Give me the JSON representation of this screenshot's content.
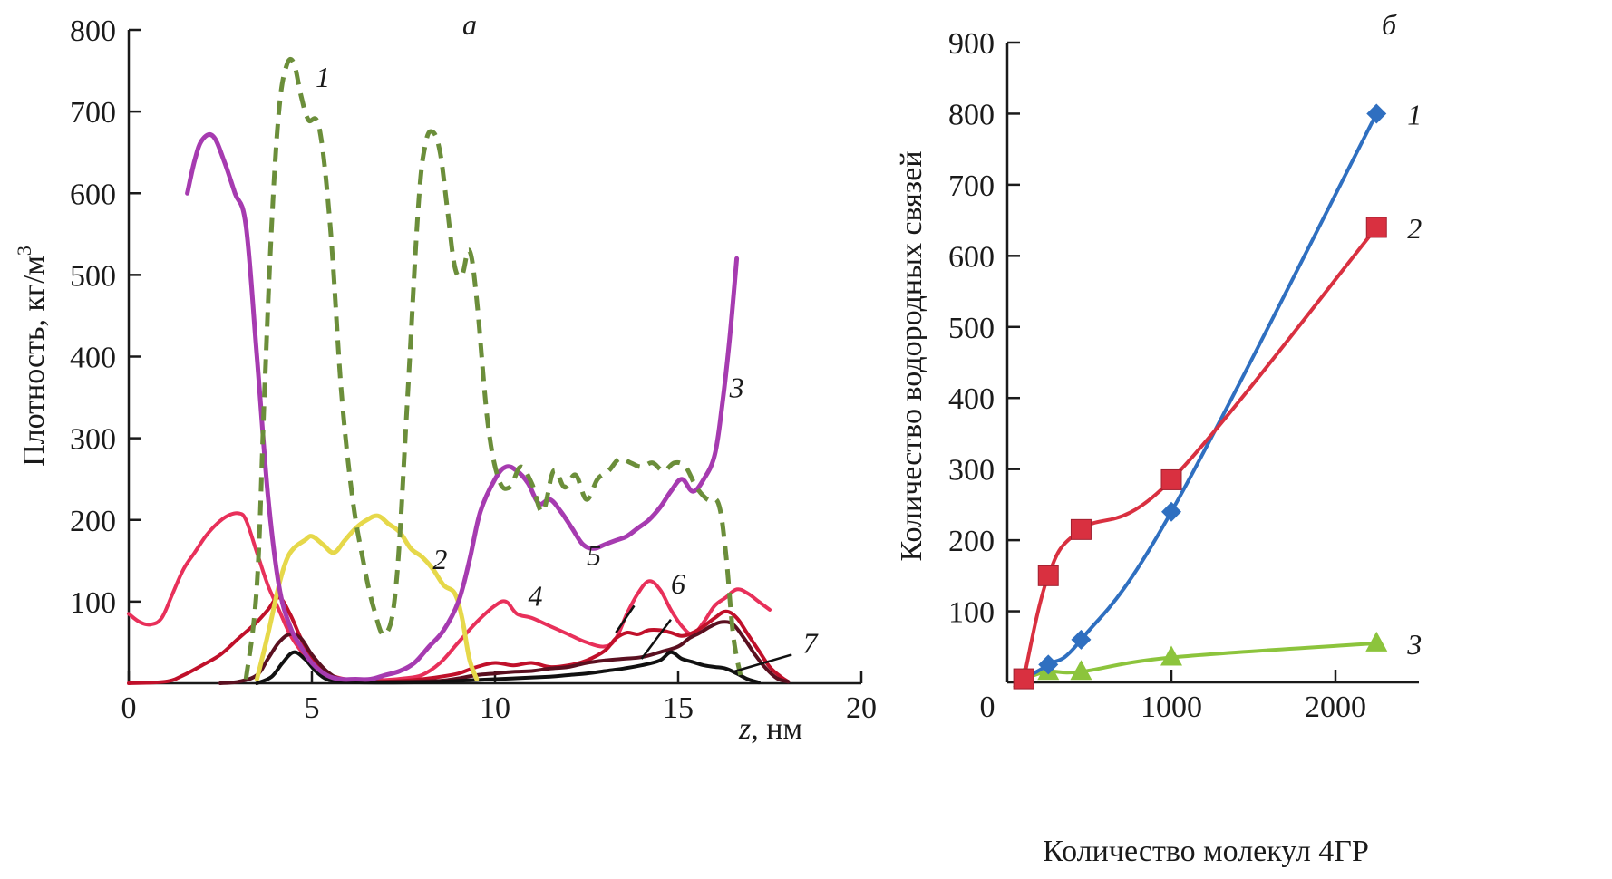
{
  "chart_data": [
    {
      "type": "line",
      "panel_label": "а",
      "title": "",
      "xlabel_italic": "z",
      "xlabel_rest": ", нм",
      "ylabel": "Плотность, кг/м",
      "ylabel_sup": "3",
      "xlim": [
        0,
        20
      ],
      "ylim": [
        0,
        800
      ],
      "xticks": [
        0,
        5,
        10,
        15,
        20
      ],
      "yticks": [
        100,
        200,
        300,
        400,
        500,
        600,
        700,
        800
      ],
      "grid": false,
      "series": [
        {
          "name": "1",
          "color": "#6b8e3a",
          "dashed": true,
          "label_pos": [
            5.3,
            730
          ],
          "x": [
            3.2,
            3.5,
            3.7,
            3.9,
            4.1,
            4.3,
            4.5,
            4.7,
            4.9,
            5.2,
            5.5,
            5.8,
            6.1,
            6.4,
            6.7,
            7.0,
            7.3,
            7.6,
            7.9,
            8.1,
            8.3,
            8.5,
            8.7,
            8.9,
            9.1,
            9.3,
            9.5,
            9.8,
            10.1,
            10.4,
            10.7,
            11.0,
            11.3,
            11.6,
            11.9,
            12.2,
            12.5,
            12.8,
            13.1,
            13.4,
            13.7,
            14.0,
            14.3,
            14.6,
            14.9,
            15.2,
            15.5,
            15.8,
            16.1,
            16.3,
            16.5,
            16.7
          ],
          "y": [
            5,
            120,
            350,
            560,
            700,
            755,
            760,
            720,
            690,
            680,
            560,
            360,
            230,
            150,
            90,
            60,
            120,
            340,
            580,
            660,
            675,
            650,
            580,
            510,
            500,
            530,
            470,
            320,
            250,
            240,
            265,
            245,
            210,
            260,
            240,
            255,
            225,
            250,
            260,
            275,
            270,
            265,
            270,
            260,
            270,
            265,
            240,
            225,
            220,
            160,
            60,
            10
          ]
        },
        {
          "name": "2",
          "color": "#e6d84a",
          "dashed": false,
          "label_pos": [
            8.5,
            140
          ],
          "x": [
            3.5,
            3.8,
            4.1,
            4.3,
            4.5,
            4.8,
            5.0,
            5.3,
            5.6,
            5.9,
            6.2,
            6.5,
            6.8,
            7.1,
            7.4,
            7.7,
            8.0,
            8.3,
            8.6,
            8.9,
            9.1,
            9.3,
            9.5
          ],
          "y": [
            5,
            60,
            120,
            150,
            165,
            175,
            180,
            170,
            160,
            175,
            190,
            200,
            205,
            195,
            185,
            165,
            155,
            140,
            120,
            110,
            80,
            30,
            5
          ]
        },
        {
          "name": "3",
          "color": "#a63bb0",
          "dashed": false,
          "label_pos": [
            16.6,
            350
          ],
          "x": [
            1.6,
            1.8,
            2.0,
            2.3,
            2.6,
            2.9,
            3.2,
            3.5,
            3.8,
            4.1,
            4.4,
            4.7,
            5.0,
            5.4,
            5.8,
            6.2,
            6.6,
            7.0,
            7.4,
            7.8,
            8.2,
            8.6,
            9.0,
            9.3,
            9.6,
            10.0,
            10.3,
            10.6,
            10.9,
            11.2,
            11.5,
            11.8,
            12.1,
            12.4,
            12.7,
            13.0,
            13.3,
            13.6,
            13.9,
            14.2,
            14.5,
            14.8,
            15.1,
            15.4,
            15.7,
            16.0,
            16.2,
            16.4,
            16.6
          ],
          "y": [
            600,
            640,
            665,
            670,
            640,
            600,
            560,
            400,
            230,
            120,
            70,
            45,
            25,
            10,
            5,
            5,
            5,
            10,
            15,
            25,
            45,
            65,
            100,
            150,
            210,
            250,
            265,
            260,
            245,
            220,
            225,
            210,
            190,
            170,
            165,
            170,
            175,
            180,
            190,
            200,
            215,
            235,
            250,
            235,
            250,
            280,
            340,
            420,
            520
          ]
        },
        {
          "name": "4",
          "color": "#e8305a",
          "dashed": false,
          "label_pos": [
            11.1,
            95
          ],
          "x": [
            0,
            0.3,
            0.6,
            0.9,
            1.2,
            1.5,
            1.8,
            2.1,
            2.4,
            2.7,
            3.0,
            3.2,
            3.5,
            3.8,
            4.1,
            4.4,
            4.7,
            5.0,
            5.4,
            5.8,
            6.2,
            6.6,
            7.0,
            7.5,
            8.0,
            8.5,
            9.0,
            9.5,
            10.0,
            10.3,
            10.6,
            11.0,
            11.5,
            12.0,
            12.5,
            13.0,
            13.3,
            13.6,
            13.9,
            14.2,
            14.5,
            14.8,
            15.1,
            15.4,
            15.7,
            16.0,
            16.3,
            16.6,
            16.9,
            17.2,
            17.5
          ],
          "y": [
            85,
            75,
            72,
            80,
            110,
            140,
            160,
            180,
            195,
            205,
            208,
            200,
            160,
            120,
            90,
            60,
            40,
            25,
            12,
            6,
            4,
            4,
            4,
            6,
            10,
            25,
            50,
            75,
            95,
            100,
            85,
            80,
            70,
            60,
            50,
            45,
            55,
            85,
            110,
            125,
            115,
            90,
            70,
            60,
            75,
            95,
            105,
            115,
            110,
            100,
            90
          ]
        },
        {
          "name": "5",
          "color": "#c0102a",
          "dashed": false,
          "label_pos": [
            12.7,
            145
          ],
          "x": [
            0,
            1.0,
            1.5,
            2.0,
            2.5,
            3.0,
            3.5,
            3.8,
            4.1,
            4.4,
            4.7,
            5.0,
            5.3,
            5.6,
            6.0,
            6.5,
            7.0,
            7.5,
            8.0,
            8.5,
            9.0,
            9.5,
            10.0,
            10.5,
            11.0,
            11.5,
            12.0,
            12.5,
            13.0,
            13.3,
            13.6,
            13.9,
            14.2,
            14.5,
            14.8,
            15.1,
            15.4,
            15.7,
            16.0,
            16.3,
            16.6,
            16.9,
            17.2,
            17.5,
            17.8,
            18.0
          ],
          "y": [
            0,
            2,
            10,
            22,
            35,
            55,
            75,
            90,
            105,
            85,
            55,
            30,
            15,
            8,
            4,
            2,
            2,
            3,
            5,
            8,
            12,
            20,
            25,
            22,
            25,
            20,
            22,
            28,
            40,
            55,
            62,
            60,
            65,
            65,
            62,
            58,
            62,
            70,
            80,
            88,
            80,
            60,
            40,
            20,
            8,
            2
          ]
        },
        {
          "name": "6",
          "color": "#5a1020",
          "dashed": false,
          "label_pos": [
            15.0,
            110
          ],
          "x": [
            2.5,
            3.0,
            3.5,
            3.8,
            4.1,
            4.4,
            4.7,
            5.0,
            5.4,
            5.8,
            6.5,
            7.5,
            8.5,
            9.0,
            9.5,
            10.0,
            10.5,
            11.0,
            11.5,
            12.0,
            12.5,
            13.0,
            13.5,
            14.0,
            14.5,
            15.0,
            15.3,
            15.6,
            15.9,
            16.2,
            16.5,
            16.8,
            17.1,
            17.4,
            17.7,
            18.0
          ],
          "y": [
            0,
            2,
            10,
            30,
            50,
            60,
            55,
            35,
            15,
            5,
            2,
            2,
            3,
            6,
            10,
            12,
            14,
            15,
            18,
            20,
            25,
            28,
            30,
            32,
            38,
            45,
            55,
            62,
            70,
            75,
            72,
            55,
            35,
            18,
            6,
            2
          ]
        },
        {
          "name": "7",
          "color": "#111111",
          "dashed": false,
          "label_pos": [
            18.6,
            37
          ],
          "x": [
            3.5,
            3.9,
            4.2,
            4.5,
            4.8,
            5.1,
            5.4,
            5.8,
            6.5,
            7.5,
            8.5,
            9.5,
            10.5,
            11.5,
            12.0,
            12.5,
            13.0,
            13.5,
            14.0,
            14.5,
            14.8,
            15.1,
            15.4,
            15.7,
            16.0,
            16.3,
            16.6,
            16.9,
            17.2
          ],
          "y": [
            0,
            8,
            25,
            38,
            30,
            15,
            5,
            2,
            1,
            1,
            2,
            4,
            6,
            8,
            10,
            12,
            15,
            18,
            22,
            28,
            38,
            30,
            26,
            22,
            20,
            18,
            12,
            5,
            1
          ]
        }
      ],
      "leader_lines": [
        {
          "name": "5",
          "from": [
            13.8,
            95
          ],
          "to": [
            13.3,
            62
          ]
        },
        {
          "name": "6",
          "from": [
            14.8,
            78
          ],
          "to": [
            14.0,
            30
          ]
        },
        {
          "name": "7",
          "from": [
            18.1,
            35
          ],
          "to": [
            16.5,
            14
          ]
        }
      ]
    },
    {
      "type": "line",
      "panel_label": "б",
      "title": "",
      "xlabel": "Количество молекул 4ГР",
      "ylabel": "Количество водородных связей",
      "xlim": [
        0,
        2400
      ],
      "ylim": [
        0,
        900
      ],
      "xticks": [
        0,
        1000,
        2000
      ],
      "yticks": [
        100,
        200,
        300,
        400,
        500,
        600,
        700,
        800,
        900
      ],
      "grid": false,
      "series": [
        {
          "name": "1",
          "color": "#2f6fc0",
          "marker": "diamond",
          "x": [
            100,
            250,
            450,
            1000,
            2250
          ],
          "y": [
            5,
            25,
            60,
            240,
            800
          ]
        },
        {
          "name": "2",
          "color": "#d93040",
          "marker": "square",
          "x": [
            100,
            250,
            450,
            1000,
            2250
          ],
          "y": [
            5,
            150,
            215,
            285,
            640
          ]
        },
        {
          "name": "3",
          "color": "#8cc43c",
          "marker": "triangle",
          "x": [
            100,
            250,
            450,
            1000,
            2250
          ],
          "y": [
            5,
            15,
            15,
            35,
            55
          ]
        }
      ]
    }
  ]
}
